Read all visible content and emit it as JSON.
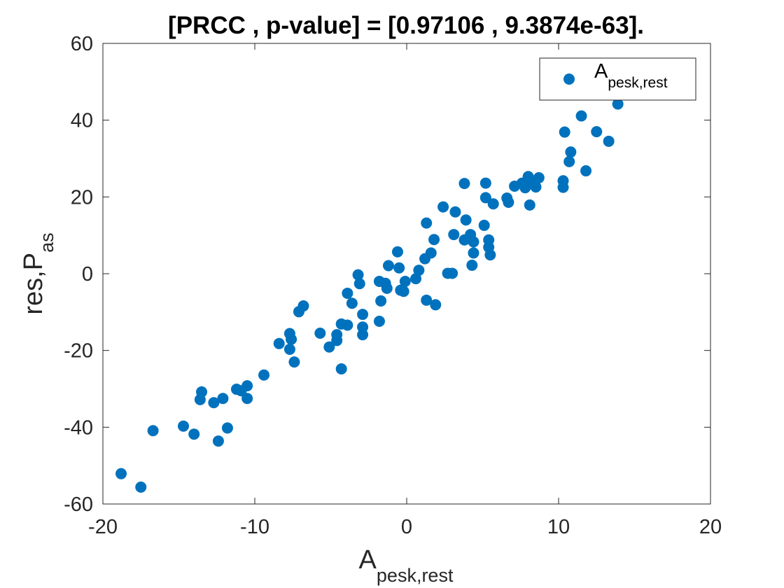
{
  "chart_data": {
    "type": "scatter",
    "title": "[PRCC , p-value] = [0.97106 , 9.3874e-63].",
    "xlabel": {
      "main": "A",
      "sub": "pesk,rest"
    },
    "ylabel": {
      "main": "res,P",
      "sub": "as"
    },
    "xlim": [
      -20,
      20
    ],
    "ylim": [
      -60,
      60
    ],
    "xticks": [
      -20,
      -10,
      0,
      10,
      20
    ],
    "xtick_labels": [
      "-20",
      "-10",
      "0",
      "10",
      "20"
    ],
    "yticks": [
      -60,
      -40,
      -20,
      0,
      20,
      40,
      60
    ],
    "ytick_labels": [
      "-60",
      "-40",
      "-20",
      "0",
      "20",
      "40",
      "60"
    ],
    "grid": false,
    "legend_position": "top-right",
    "marker_color": "#0072BD",
    "series": [
      {
        "name": "A_pesk,rest",
        "legend_main": "A",
        "legend_sub": "pesk,rest",
        "points": [
          [
            -18.8,
            -52.1
          ],
          [
            -17.5,
            -55.6
          ],
          [
            -16.7,
            -40.9
          ],
          [
            -14.7,
            -39.7
          ],
          [
            -14.0,
            -41.8
          ],
          [
            -13.5,
            -30.8
          ],
          [
            -13.6,
            -32.8
          ],
          [
            -12.7,
            -33.6
          ],
          [
            -12.4,
            -43.6
          ],
          [
            -12.1,
            -32.5
          ],
          [
            -11.8,
            -40.2
          ],
          [
            -11.2,
            -30.1
          ],
          [
            -10.9,
            -30.5
          ],
          [
            -10.5,
            -29.2
          ],
          [
            -10.5,
            -32.5
          ],
          [
            -9.4,
            -26.4
          ],
          [
            -8.4,
            -18.2
          ],
          [
            -7.7,
            -15.6
          ],
          [
            -7.7,
            -19.7
          ],
          [
            -7.6,
            -17.1
          ],
          [
            -7.4,
            -23.0
          ],
          [
            -7.1,
            -9.9
          ],
          [
            -6.8,
            -8.4
          ],
          [
            -5.7,
            -15.5
          ],
          [
            -5.1,
            -19.1
          ],
          [
            -4.6,
            -15.9
          ],
          [
            -4.6,
            -17.4
          ],
          [
            -4.3,
            -13.1
          ],
          [
            -4.3,
            -24.8
          ],
          [
            -3.9,
            -13.4
          ],
          [
            -3.9,
            -5.1
          ],
          [
            -3.6,
            -7.7
          ],
          [
            -3.2,
            -0.3
          ],
          [
            -3.1,
            -2.6
          ],
          [
            -2.9,
            -10.6
          ],
          [
            -2.9,
            -13.9
          ],
          [
            -2.9,
            -15.9
          ],
          [
            -1.8,
            -2.0
          ],
          [
            -1.8,
            -12.4
          ],
          [
            -1.7,
            -7.1
          ],
          [
            -1.4,
            -2.5
          ],
          [
            -1.3,
            -3.8
          ],
          [
            -1.2,
            2.1
          ],
          [
            -0.6,
            5.7
          ],
          [
            -0.5,
            1.5
          ],
          [
            -0.4,
            -4.3
          ],
          [
            -0.2,
            -4.6
          ],
          [
            -0.1,
            -2.0
          ],
          [
            0.6,
            -1.3
          ],
          [
            0.8,
            0.9
          ],
          [
            1.2,
            3.9
          ],
          [
            1.3,
            13.2
          ],
          [
            1.3,
            -6.9
          ],
          [
            1.6,
            5.4
          ],
          [
            1.8,
            8.9
          ],
          [
            1.9,
            -8.1
          ],
          [
            2.4,
            17.4
          ],
          [
            2.7,
            0.1
          ],
          [
            3.0,
            0.1
          ],
          [
            3.1,
            10.2
          ],
          [
            3.2,
            16.1
          ],
          [
            3.8,
            23.5
          ],
          [
            3.8,
            8.8
          ],
          [
            3.9,
            14.0
          ],
          [
            4.2,
            10.2
          ],
          [
            4.3,
            2.2
          ],
          [
            4.4,
            5.4
          ],
          [
            4.4,
            8.3
          ],
          [
            5.1,
            12.6
          ],
          [
            5.2,
            19.8
          ],
          [
            5.2,
            23.6
          ],
          [
            5.4,
            8.8
          ],
          [
            5.4,
            6.9
          ],
          [
            5.5,
            4.9
          ],
          [
            5.7,
            18.2
          ],
          [
            6.6,
            19.7
          ],
          [
            6.7,
            18.6
          ],
          [
            7.1,
            22.8
          ],
          [
            7.6,
            23.6
          ],
          [
            7.8,
            22.4
          ],
          [
            8.0,
            25.3
          ],
          [
            8.1,
            17.9
          ],
          [
            8.2,
            24.1
          ],
          [
            8.5,
            22.6
          ],
          [
            8.7,
            25.0
          ],
          [
            10.3,
            24.2
          ],
          [
            10.3,
            22.5
          ],
          [
            10.4,
            36.9
          ],
          [
            10.7,
            29.2
          ],
          [
            10.8,
            31.7
          ],
          [
            11.5,
            41.1
          ],
          [
            11.8,
            26.8
          ],
          [
            12.5,
            37.0
          ],
          [
            13.3,
            34.5
          ],
          [
            13.9,
            44.2
          ]
        ]
      }
    ]
  }
}
